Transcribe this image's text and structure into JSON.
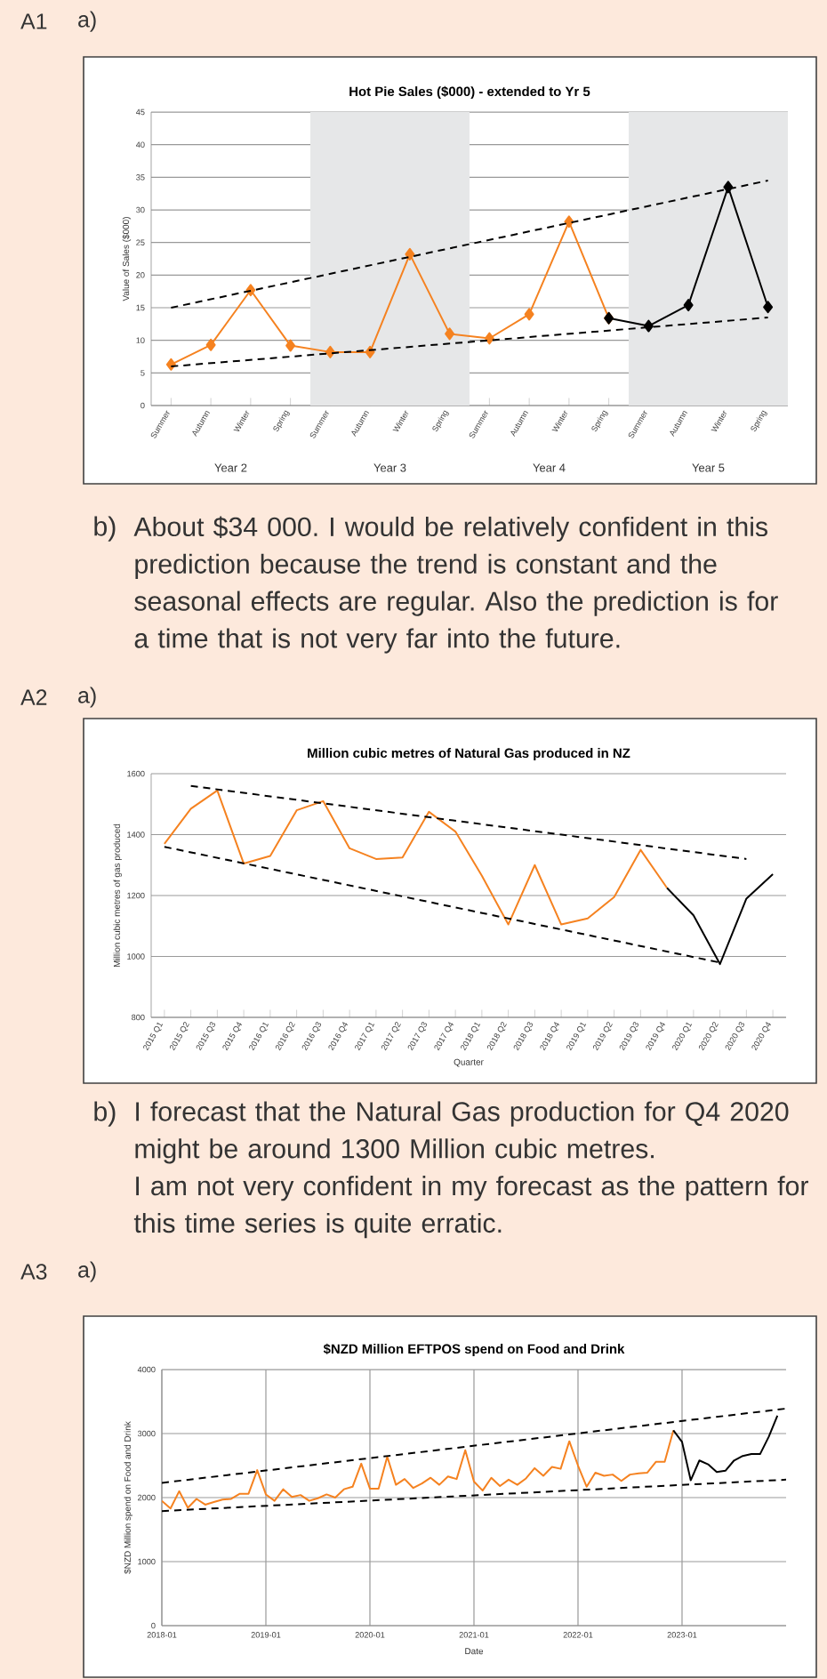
{
  "chart_data": [
    {
      "type": "line",
      "title": "Hot Pie Sales ($000) - extended to Yr 5",
      "ylabel": "Value of Sales ($000)",
      "categories": [
        "Summer",
        "Autumn",
        "Winter",
        "Spring",
        "Summer",
        "Autumn",
        "Winter",
        "Spring",
        "Summer",
        "Autumn",
        "Winter",
        "Spring",
        "Summer",
        "Autumn",
        "Winter",
        "Spring"
      ],
      "series": [
        {
          "color": "#f58220",
          "marker": "diamond",
          "values": [
            6.3,
            9.3,
            17.7,
            9.2,
            8.2,
            8.2,
            23.2,
            11,
            10.3,
            14,
            28.2,
            13.4,
            null,
            null,
            null,
            null
          ]
        },
        {
          "color": "#000000",
          "marker": "diamond",
          "values": [
            null,
            null,
            null,
            null,
            null,
            null,
            null,
            null,
            null,
            null,
            null,
            13.4,
            12.2,
            15.4,
            33.5,
            15.1
          ]
        },
        {
          "type": "line",
          "color": "#000000",
          "line_style": "dashed",
          "values": [
            15,
            null,
            null,
            null,
            null,
            null,
            null,
            null,
            null,
            null,
            null,
            null,
            null,
            null,
            null,
            34.5
          ]
        },
        {
          "type": "line",
          "color": "#000000",
          "line_style": "dashed",
          "values": [
            6,
            null,
            null,
            null,
            null,
            null,
            null,
            null,
            null,
            null,
            null,
            null,
            null,
            null,
            null,
            13.5
          ]
        }
      ],
      "ylim": [
        0,
        45
      ],
      "yticks": [
        0,
        5,
        10,
        15,
        20,
        25,
        30,
        35,
        40,
        45
      ],
      "grid": "y",
      "annotations": [
        "A1",
        "a)",
        "Year 2",
        "Year 3",
        "Year 4",
        "Year 5"
      ]
    },
    {
      "type": "other",
      "annotations": [
        "b)",
        "About $34 000. I would be relatively confident in this prediction because the trend is constant and the seasonal effects are regular. Also the prediction is for a time that is not very far into the future."
      ]
    },
    {
      "type": "line",
      "title": "Million cubic metres of Natural Gas produced in NZ",
      "ylabel": "Million cubic metres of gas produced",
      "xlabel": "Quarter",
      "categories": [
        "2015 Q1",
        "2015 Q2",
        "2015 Q3",
        "2015 Q4",
        "2016 Q1",
        "2016 Q2",
        "2016 Q3",
        "2016 Q4",
        "2017 Q1",
        "2017 Q2",
        "2017 Q3",
        "2017 Q4",
        "2018 Q1",
        "2018 Q2",
        "2018 Q3",
        "2018 Q4",
        "2019 Q1",
        "2019 Q2",
        "2019 Q3",
        "2019 Q4",
        "2020 Q1",
        "2020 Q2",
        "2020 Q3",
        "2020 Q4"
      ],
      "series": [
        {
          "color": "#f58220",
          "values": [
            1370,
            1485,
            1545,
            1305,
            1330,
            1480,
            1510,
            1355,
            1320,
            1325,
            1475,
            1410,
            1265,
            1105,
            1300,
            1105,
            1125,
            1195,
            1350,
            1225,
            null,
            null,
            null,
            null
          ]
        },
        {
          "color": "#000000",
          "values": [
            null,
            null,
            null,
            null,
            null,
            null,
            null,
            null,
            null,
            null,
            null,
            null,
            null,
            null,
            null,
            null,
            null,
            null,
            null,
            1225,
            1135,
            975,
            1190,
            1270
          ]
        },
        {
          "type": "line",
          "color": "#000000",
          "line_style": "dashed",
          "values": [
            null,
            1560,
            null,
            null,
            null,
            null,
            null,
            null,
            null,
            null,
            null,
            null,
            null,
            null,
            null,
            null,
            null,
            null,
            null,
            null,
            null,
            null,
            1320,
            null
          ]
        },
        {
          "type": "line",
          "color": "#000000",
          "line_style": "dashed",
          "values": [
            1360,
            null,
            null,
            null,
            null,
            null,
            null,
            null,
            null,
            null,
            null,
            null,
            null,
            null,
            null,
            null,
            null,
            null,
            null,
            null,
            null,
            980,
            null,
            null
          ]
        }
      ],
      "ylim": [
        800,
        1600
      ],
      "yticks": [
        800,
        1000,
        1200,
        1400,
        1600
      ],
      "grid": "y",
      "annotations": [
        "A2",
        "a)"
      ]
    },
    {
      "type": "other",
      "annotations": [
        "b)",
        "I forecast that the Natural Gas production for Q4 2020 might be around 1300 Million cubic metres.",
        "I am not very confident in my forecast as the pattern for this time series is quite erratic."
      ]
    },
    {
      "type": "line",
      "title": "$NZD Million EFTPOS spend on Food and Drink",
      "ylabel": "$NZD Million spend on Food and Drink",
      "xlabel": "Date",
      "series": [
        {
          "color": "#f58220",
          "x": [
            "2018-01",
            "2018-02",
            "2018-03",
            "2018-04",
            "2018-05",
            "2018-06",
            "2018-07",
            "2018-08",
            "2018-09",
            "2018-10",
            "2018-11",
            "2018-12",
            "2019-01",
            "2019-02",
            "2019-03",
            "2019-04",
            "2019-05",
            "2019-06",
            "2019-07",
            "2019-08",
            "2019-09",
            "2019-10",
            "2019-11",
            "2019-12",
            "2020-01",
            "2020-02",
            "2020-03",
            "2020-04",
            "2020-05",
            "2020-06",
            "2020-07",
            "2020-08",
            "2020-09",
            "2020-10",
            "2020-11",
            "2020-12",
            "2021-01",
            "2021-02",
            "2021-03",
            "2021-04",
            "2021-05",
            "2021-06",
            "2021-07",
            "2021-08",
            "2021-09",
            "2021-10",
            "2021-11",
            "2021-12",
            "2022-01",
            "2022-02",
            "2022-03",
            "2022-04",
            "2022-05",
            "2022-06",
            "2022-07",
            "2022-08",
            "2022-09",
            "2022-10",
            "2022-11",
            "2022-12"
          ],
          "values": [
            1950,
            1830,
            2100,
            1840,
            1980,
            1890,
            1930,
            1970,
            1980,
            2060,
            2060,
            2430,
            2050,
            1950,
            2130,
            2010,
            2040,
            1950,
            1990,
            2050,
            2000,
            2130,
            2170,
            2530,
            2140,
            2140,
            2640,
            2200,
            2290,
            2150,
            2220,
            2310,
            2200,
            2330,
            2290,
            2740,
            2250,
            2110,
            2310,
            2180,
            2280,
            2200,
            2300,
            2460,
            2340,
            2480,
            2450,
            2880,
            2500,
            2170,
            2390,
            2340,
            2360,
            2260,
            2360,
            2380,
            2390,
            2560,
            2560,
            3050
          ]
        },
        {
          "color": "#000000",
          "x": [
            "2022-12",
            "2023-01",
            "2023-02",
            "2023-03",
            "2023-04",
            "2023-05",
            "2023-06",
            "2023-07",
            "2023-08",
            "2023-09",
            "2023-10",
            "2023-11",
            "2023-12"
          ],
          "values": [
            3050,
            2870,
            2270,
            2580,
            2520,
            2400,
            2420,
            2580,
            2650,
            2680,
            2680,
            2950,
            3280
          ]
        },
        {
          "type": "line",
          "color": "#000000",
          "line_style": "dashed",
          "x": [
            "2018-01",
            "2024-01"
          ],
          "values": [
            2230,
            3390
          ]
        },
        {
          "type": "line",
          "color": "#000000",
          "line_style": "dashed",
          "x": [
            "2018-01",
            "2024-01"
          ],
          "values": [
            1790,
            2280
          ]
        }
      ],
      "xlim": [
        "2018-01",
        "2024-01"
      ],
      "xticks": [
        "2018-01",
        "2019-01",
        "2020-01",
        "2021-01",
        "2022-01",
        "2023-01"
      ],
      "ylim": [
        0,
        4000
      ],
      "yticks": [
        0,
        1000,
        2000,
        3000,
        4000
      ],
      "grid": true,
      "annotations": [
        "A3",
        "a)"
      ]
    }
  ]
}
